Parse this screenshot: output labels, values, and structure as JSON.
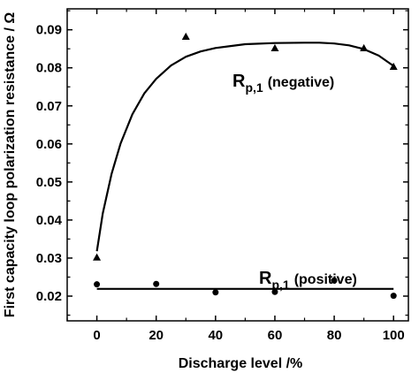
{
  "chart_data": {
    "type": "scatter",
    "xlabel": "Discharge level /%",
    "ylabel": "First capacity loop polarization resistance / Ω",
    "xlim": [
      -10,
      105
    ],
    "ylim": [
      0.0135,
      0.0955
    ],
    "x_ticks": [
      0,
      20,
      40,
      60,
      80,
      100
    ],
    "x_tick_labels": [
      "0",
      "20",
      "40",
      "60",
      "80",
      "100"
    ],
    "y_ticks": [
      0.02,
      0.03,
      0.04,
      0.05,
      0.06,
      0.07,
      0.08,
      0.09
    ],
    "y_tick_labels": [
      "0.02",
      "0.03",
      "0.04",
      "0.05",
      "0.06",
      "0.07",
      "0.08",
      "0.09"
    ],
    "grid": false,
    "series": [
      {
        "marker": "triangle",
        "color": "#000000",
        "x": [
          0,
          30,
          60,
          90,
          100
        ],
        "y": [
          0.0302,
          0.0882,
          0.0852,
          0.0852,
          0.0803
        ],
        "fit": {
          "x": [
            0,
            2,
            5,
            8,
            12,
            16,
            20,
            25,
            30,
            35,
            40,
            50,
            60,
            70,
            75,
            80,
            85,
            90,
            95,
            100
          ],
          "y": [
            0.0318,
            0.0418,
            0.0522,
            0.0601,
            0.0678,
            0.0733,
            0.0771,
            0.0806,
            0.0829,
            0.0843,
            0.0852,
            0.0862,
            0.0865,
            0.0866,
            0.0866,
            0.0864,
            0.0859,
            0.0849,
            0.0832,
            0.0805
          ]
        },
        "annotation": {
          "main": "R",
          "sub": "p,1",
          "text": "(negative)"
        }
      },
      {
        "marker": "circle",
        "color": "#000000",
        "x": [
          0,
          20,
          40,
          60,
          80,
          100
        ],
        "y": [
          0.0231,
          0.0232,
          0.021,
          0.0211,
          0.0241,
          0.0201
        ],
        "fit": {
          "x": [
            0,
            100
          ],
          "y": [
            0.0219,
            0.0219
          ]
        },
        "annotation": {
          "main": "R",
          "sub": "p,1",
          "text": "(positive)"
        }
      }
    ]
  }
}
